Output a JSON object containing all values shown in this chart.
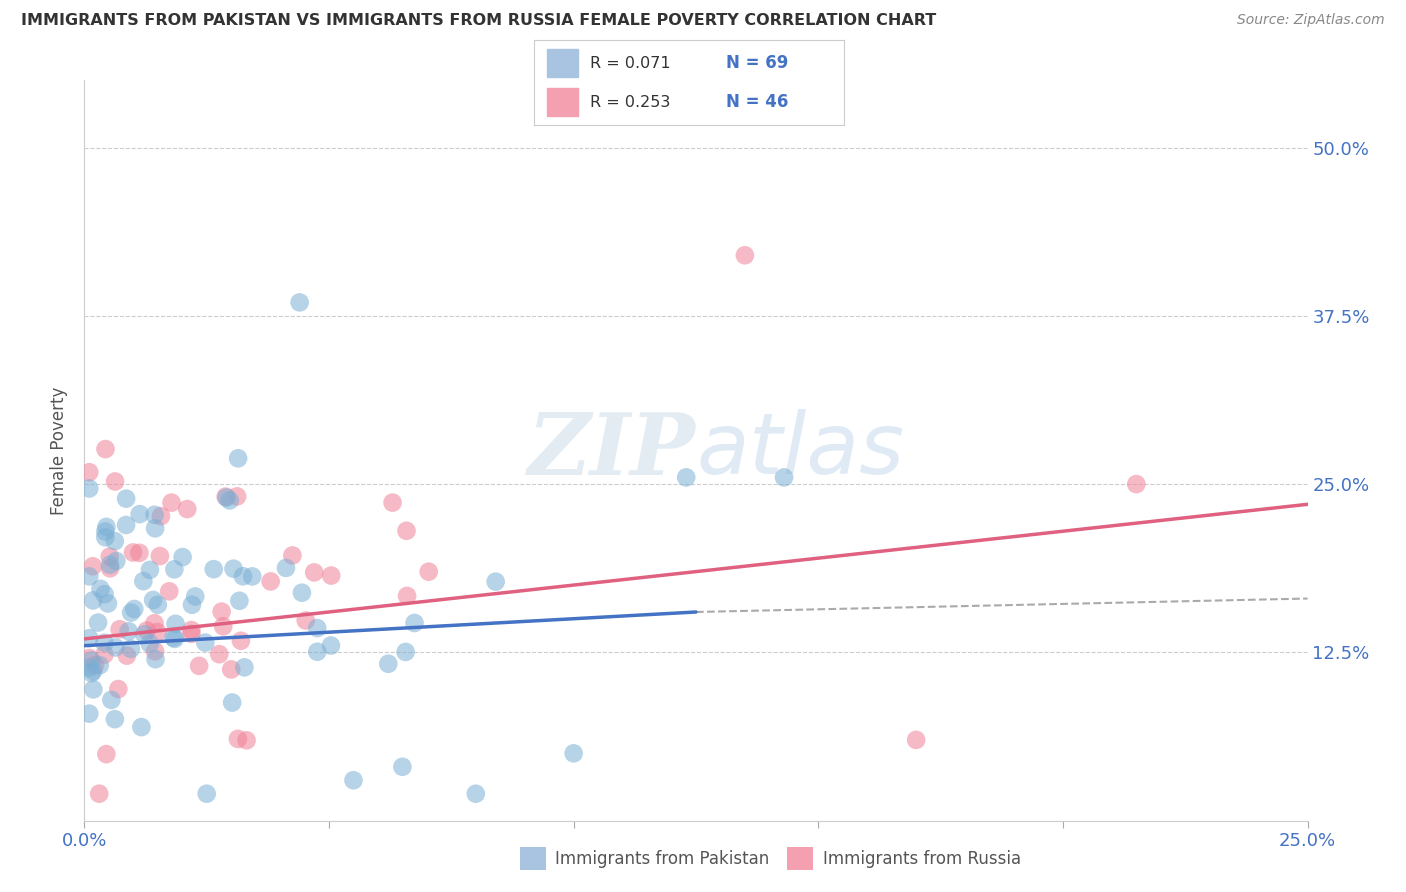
{
  "title": "IMMIGRANTS FROM PAKISTAN VS IMMIGRANTS FROM RUSSIA FEMALE POVERTY CORRELATION CHART",
  "source": "Source: ZipAtlas.com",
  "ylabel": "Female Poverty",
  "yticks": [
    "50.0%",
    "37.5%",
    "25.0%",
    "12.5%"
  ],
  "ytick_vals": [
    0.5,
    0.375,
    0.25,
    0.125
  ],
  "xlim": [
    0.0,
    0.25
  ],
  "ylim": [
    0.0,
    0.55
  ],
  "pakistan_color": "#7bafd4",
  "russia_color": "#f08098",
  "pakistan_trendline_color": "#4472c4",
  "russia_trendline_color": "#e06080",
  "dashed_line_color": "#aaaaaa",
  "background_color": "#ffffff",
  "grid_color": "#cccccc",
  "watermark_color": "#c8d8e8",
  "legend_pak_color": "#a8c4e0",
  "legend_rus_color": "#f4a0b0",
  "legend_r_pak": "0.071",
  "legend_n_pak": "69",
  "legend_r_rus": "0.253",
  "legend_n_rus": "46",
  "pak_label": "Immigrants from Pakistan",
  "rus_label": "Immigrants from Russia",
  "title_color": "#333333",
  "source_color": "#888888",
  "axis_text_color": "#4472c4",
  "ylabel_color": "#555555"
}
